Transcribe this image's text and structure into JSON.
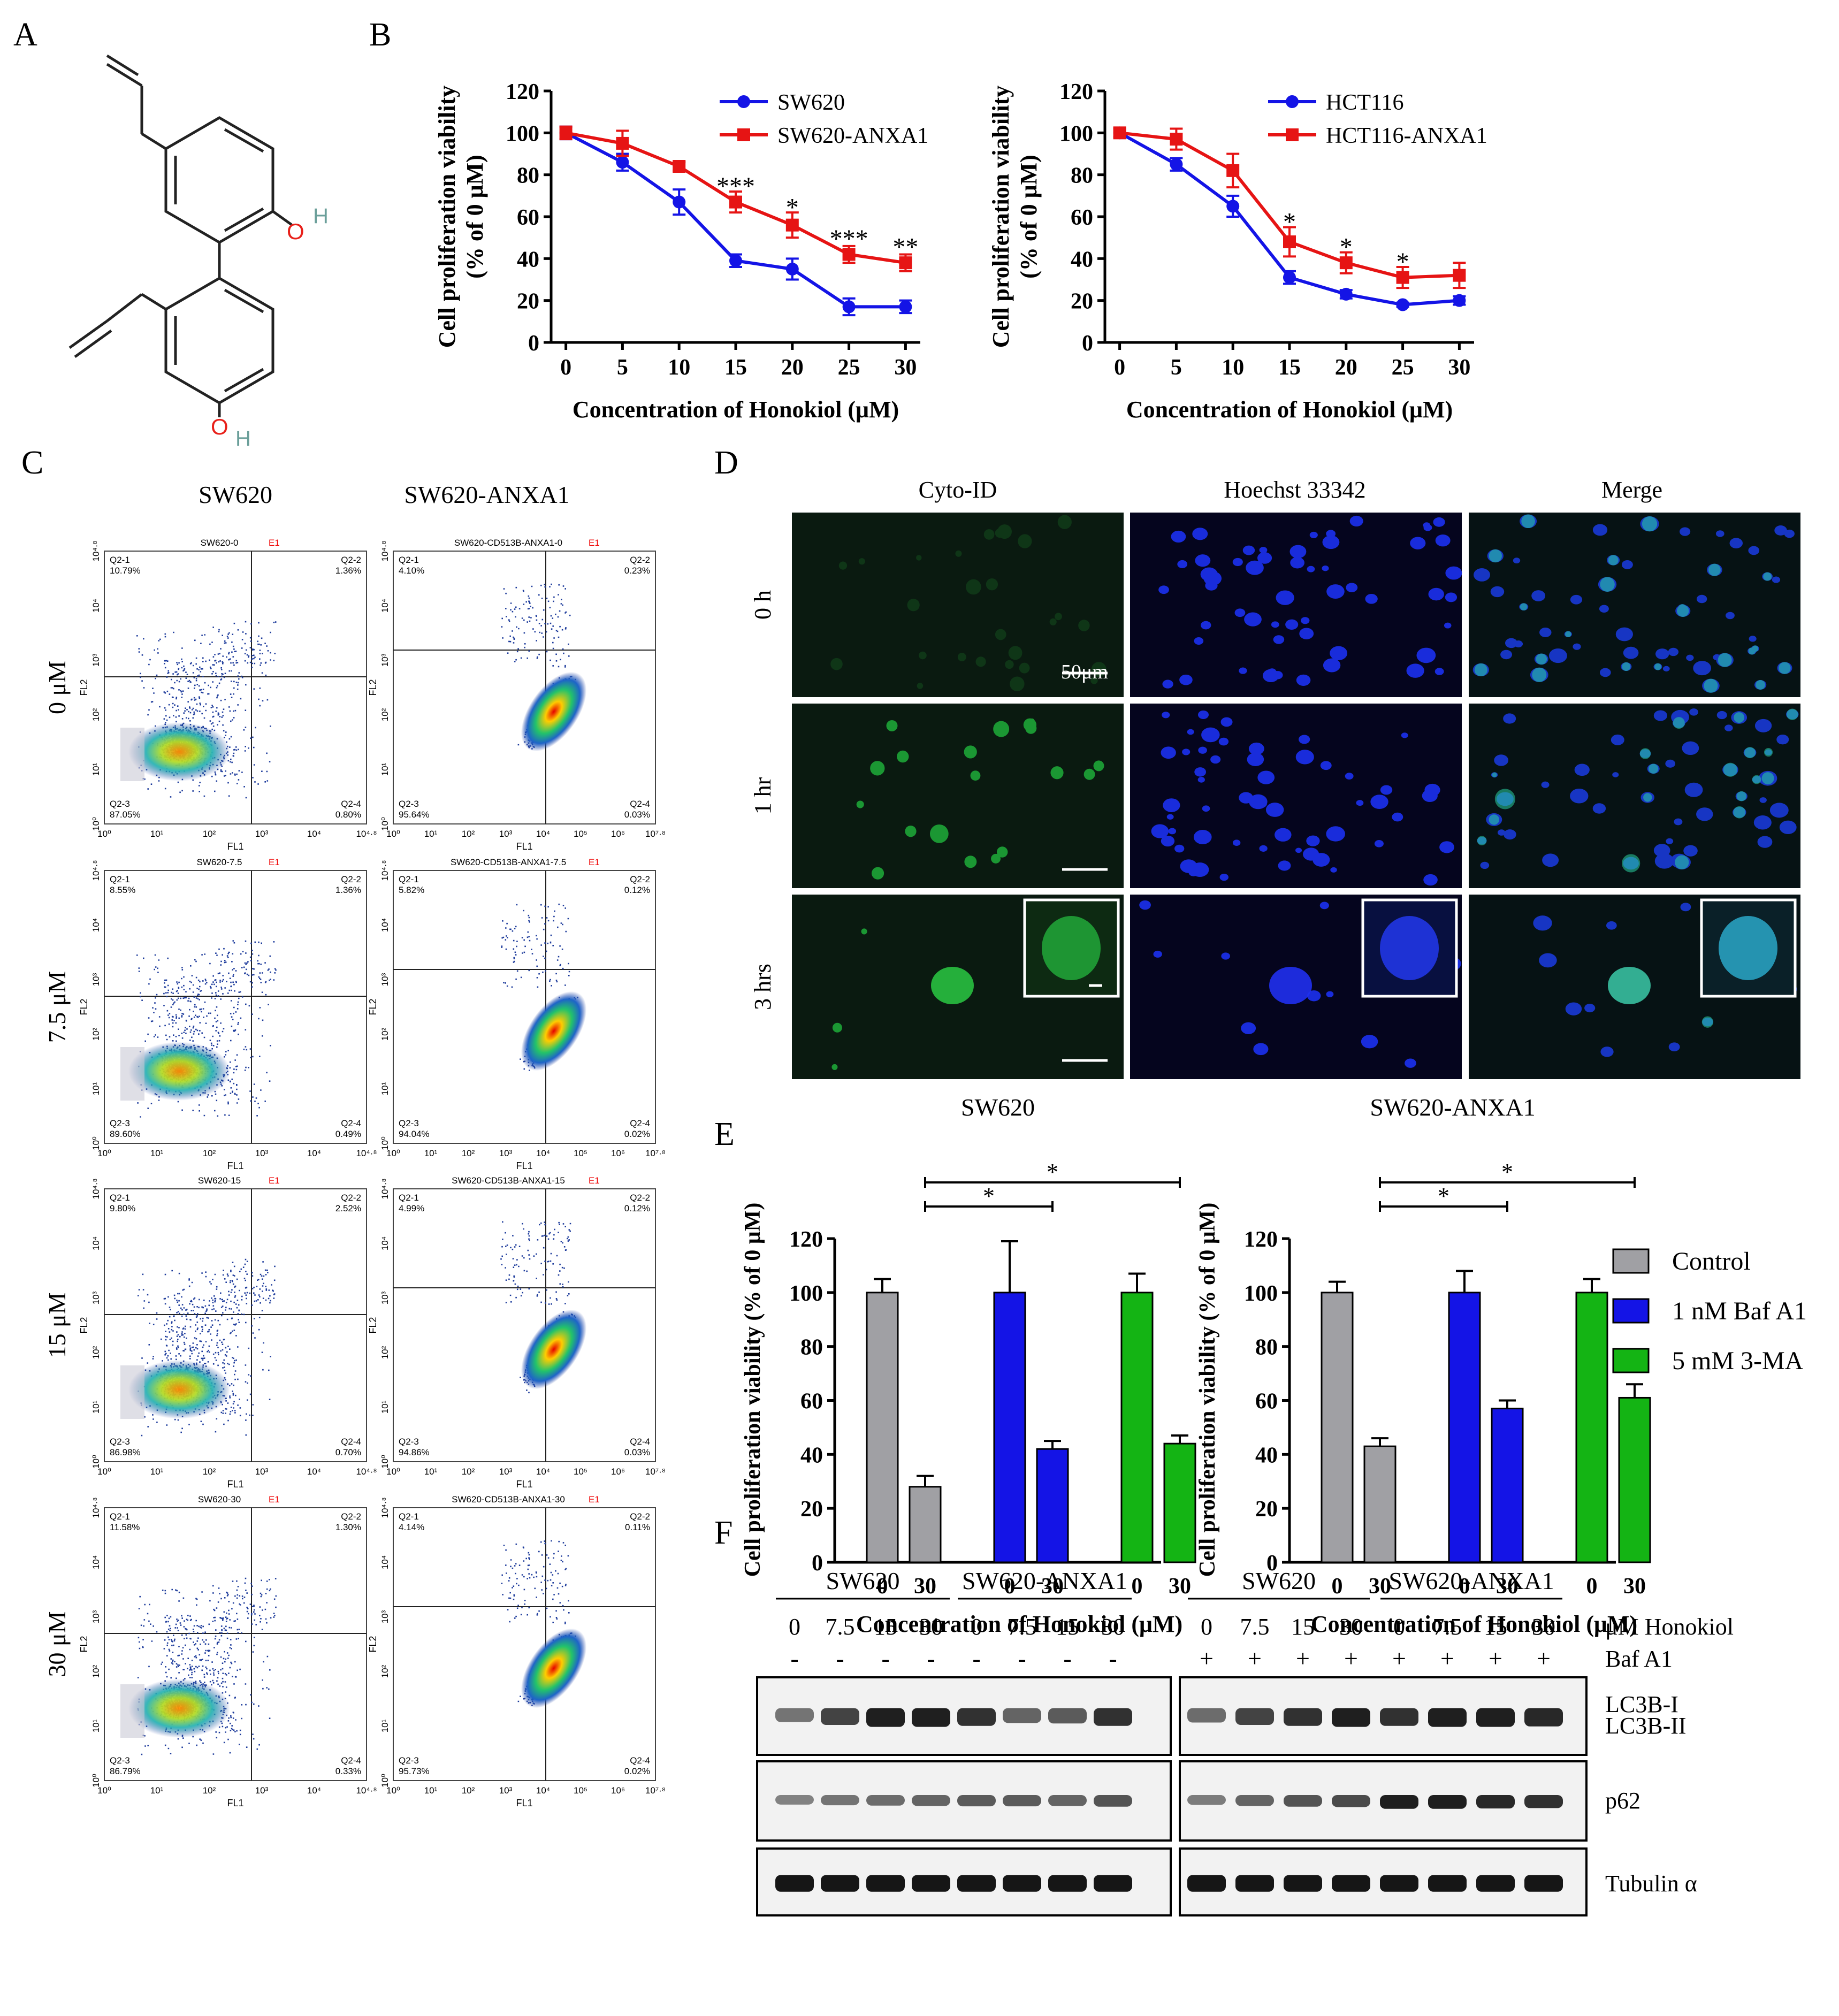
{
  "panels": {
    "A": "A",
    "B": "B",
    "C": "C",
    "D": "D",
    "E": "E",
    "F": "F"
  },
  "panel_a": {
    "atom_labels": {
      "o1": "O",
      "h1": "H",
      "o2": "O",
      "h2": "H"
    }
  },
  "chart_data": [
    {
      "id": "B-left",
      "type": "line",
      "xlabel": "Concentration of Honokiol (μM)",
      "ylabel_line1": "Cell proliferation viability",
      "ylabel_line2": "(% of 0 μM)",
      "x": [
        0,
        5,
        10,
        15,
        20,
        25,
        30
      ],
      "xticks": [
        "0",
        "5",
        "10",
        "15",
        "20",
        "25",
        "30"
      ],
      "yticks": [
        "0",
        "20",
        "40",
        "60",
        "80",
        "100",
        "120"
      ],
      "ylim": [
        0,
        120
      ],
      "series": [
        {
          "name": "SW620",
          "color": "#1414e6",
          "values": [
            100,
            86,
            67,
            39,
            35,
            17,
            17
          ],
          "errors": [
            3,
            4,
            6,
            3,
            5,
            4,
            3
          ]
        },
        {
          "name": "SW620-ANXA1",
          "color": "#e61414",
          "values": [
            100,
            95,
            84,
            67,
            56,
            42,
            38
          ],
          "errors": [
            3,
            6,
            2,
            5,
            6,
            4,
            4
          ]
        }
      ],
      "annotations": [
        {
          "x": 15,
          "text": "***",
          "y": 73
        },
        {
          "x": 20,
          "text": "*",
          "y": 63
        },
        {
          "x": 25,
          "text": "***",
          "y": 48
        },
        {
          "x": 30,
          "text": "**",
          "y": 44
        }
      ]
    },
    {
      "id": "B-right",
      "type": "line",
      "xlabel": "Concentration of Honokiol (μM)",
      "ylabel_line1": "Cell proliferation viability",
      "ylabel_line2": "(% of 0 μM)",
      "x": [
        0,
        5,
        10,
        15,
        20,
        25,
        30
      ],
      "xticks": [
        "0",
        "5",
        "10",
        "15",
        "20",
        "25",
        "30"
      ],
      "yticks": [
        "0",
        "20",
        "40",
        "60",
        "80",
        "100",
        "120"
      ],
      "ylim": [
        0,
        120
      ],
      "series": [
        {
          "name": "HCT116",
          "color": "#1414e6",
          "values": [
            100,
            85,
            65,
            31,
            23,
            18,
            20
          ],
          "errors": [
            2,
            3,
            5,
            3,
            2,
            1,
            2
          ]
        },
        {
          "name": "HCT116-ANXA1",
          "color": "#e61414",
          "values": [
            100,
            97,
            82,
            48,
            38,
            31,
            32
          ],
          "errors": [
            2,
            5,
            8,
            7,
            5,
            5,
            6
          ]
        }
      ],
      "annotations": [
        {
          "x": 15,
          "text": "*",
          "y": 56
        },
        {
          "x": 20,
          "text": "*",
          "y": 44
        },
        {
          "x": 25,
          "text": "*",
          "y": 37
        }
      ]
    },
    {
      "id": "E-left",
      "type": "bar",
      "title": "SW620",
      "xlabel": "Concentration of Honokiol (μM)",
      "ylabel": "Cell proliferation viability (% of 0 μM)",
      "categories": [
        "0",
        "30",
        "0",
        "30",
        "0",
        "30"
      ],
      "yticks": [
        "0",
        "20",
        "40",
        "60",
        "80",
        "100",
        "120"
      ],
      "ylim": [
        0,
        120
      ],
      "values": [
        100,
        28,
        100,
        42,
        100,
        44
      ],
      "errors": [
        5,
        4,
        19,
        3,
        7,
        3
      ],
      "colors": [
        "#a0a0a4",
        "#a0a0a4",
        "#1414e6",
        "#1414e6",
        "#14b414",
        "#14b414"
      ],
      "brackets": [
        {
          "from": 1,
          "to": 3,
          "text": "*",
          "level": 0
        },
        {
          "from": 1,
          "to": 5,
          "text": "*",
          "level": 1
        }
      ]
    },
    {
      "id": "E-right",
      "type": "bar",
      "title": "SW620-ANXA1",
      "xlabel": "Concentration of Honokiol (μM)",
      "ylabel": "Cell proliferation viability (% of 0 μM)",
      "categories": [
        "0",
        "30",
        "0",
        "30",
        "0",
        "30"
      ],
      "yticks": [
        "0",
        "20",
        "40",
        "60",
        "80",
        "100",
        "120"
      ],
      "ylim": [
        0,
        120
      ],
      "values": [
        100,
        43,
        100,
        57,
        100,
        61
      ],
      "errors": [
        4,
        3,
        8,
        3,
        5,
        5
      ],
      "colors": [
        "#a0a0a4",
        "#a0a0a4",
        "#1414e6",
        "#1414e6",
        "#14b414",
        "#14b414"
      ],
      "brackets": [
        {
          "from": 1,
          "to": 3,
          "text": "*",
          "level": 0
        },
        {
          "from": 1,
          "to": 5,
          "text": "*",
          "level": 1
        }
      ]
    }
  ],
  "legend_e": [
    {
      "label": "Control",
      "color": "#a0a0a4"
    },
    {
      "label": "1 nM Baf A1",
      "color": "#1414e6"
    },
    {
      "label": "5 mM 3-MA",
      "color": "#14b414"
    }
  ],
  "panel_c": {
    "col_headers": [
      "SW620",
      "SW620-ANXA1"
    ],
    "row_labels": [
      "0 μM",
      "7.5 μM",
      "15 μM",
      "30 μM"
    ],
    "x_axis_label": "FL1",
    "y_axis_label": "FL2",
    "plots": [
      {
        "title": "SW620-0",
        "gate": "E1",
        "q1": "10.79%",
        "q2": "1.36%",
        "q3": "87.05%",
        "q4": "0.80%"
      },
      {
        "title": "SW620-CD513B-ANXA1-0",
        "gate": "E1",
        "q1": "4.10%",
        "q2": "0.23%",
        "q3": "95.64%",
        "q4": "0.03%"
      },
      {
        "title": "SW620-7.5",
        "gate": "E1",
        "q1": "8.55%",
        "q2": "1.36%",
        "q3": "89.60%",
        "q4": "0.49%"
      },
      {
        "title": "SW620-CD513B-ANXA1-7.5",
        "gate": "E1",
        "q1": "5.82%",
        "q2": "0.12%",
        "q3": "94.04%",
        "q4": "0.02%"
      },
      {
        "title": "SW620-15",
        "gate": "E1",
        "q1": "9.80%",
        "q2": "2.52%",
        "q3": "86.98%",
        "q4": "0.70%"
      },
      {
        "title": "SW620-CD513B-ANXA1-15",
        "gate": "E1",
        "q1": "4.99%",
        "q2": "0.12%",
        "q3": "94.86%",
        "q4": "0.03%"
      },
      {
        "title": "SW620-30",
        "gate": "E1",
        "q1": "11.58%",
        "q2": "1.30%",
        "q3": "86.79%",
        "q4": "0.33%"
      },
      {
        "title": "SW620-CD513B-ANXA1-30",
        "gate": "E1",
        "q1": "4.14%",
        "q2": "0.11%",
        "q3": "95.73%",
        "q4": "0.02%"
      }
    ],
    "quadrant_names": {
      "q1": "Q2-1",
      "q2": "Q2-2",
      "q3": "Q2-3",
      "q4": "Q2-4"
    },
    "xticks_sw620": [
      "10⁰",
      "10¹",
      "10²",
      "10³",
      "10⁴",
      "10⁴·⁸"
    ],
    "xticks_anxa1": [
      "10⁰",
      "10¹",
      "10²",
      "10³",
      "10⁴",
      "10⁵",
      "10⁶",
      "10⁷·⁸"
    ],
    "yticks": [
      "10⁰",
      "10¹",
      "10²",
      "10³",
      "10⁴",
      "10⁴·⁸"
    ]
  },
  "panel_d": {
    "col_headers": [
      "Cyto-ID",
      "Hoechst 33342",
      "Merge"
    ],
    "row_labels": [
      "0 h",
      "1 hr",
      "3 hrs"
    ],
    "scale_label": "50μm"
  },
  "panel_f": {
    "group_labels": [
      "SW620",
      "SW620-ANXA1",
      "SW620",
      "SW620-ANXA1"
    ],
    "doses": [
      "0",
      "7.5",
      "15",
      "30",
      "0",
      "7.5",
      "15",
      "30",
      "0",
      "7.5",
      "15",
      "30",
      "0",
      "7.5",
      "15",
      "30"
    ],
    "baf": [
      "-",
      "-",
      "-",
      "-",
      "-",
      "-",
      "-",
      "-",
      "+",
      "+",
      "+",
      "+",
      "+",
      "+",
      "+",
      "+"
    ],
    "row_label_dose": "μM Honokiol",
    "row_label_baf": "Baf A1",
    "bands": [
      "LC3B-I",
      "LC3B-II",
      "p62",
      "Tubulin α"
    ],
    "intensity_lc3_minus": [
      0.45,
      0.75,
      0.95,
      0.95,
      0.85,
      0.55,
      0.6,
      0.85
    ],
    "intensity_lc3_plus": [
      0.5,
      0.75,
      0.85,
      0.95,
      0.85,
      0.95,
      0.95,
      0.9
    ],
    "intensity_p62_minus": [
      0.35,
      0.45,
      0.5,
      0.55,
      0.6,
      0.6,
      0.55,
      0.65
    ],
    "intensity_p62_plus": [
      0.4,
      0.55,
      0.65,
      0.7,
      0.95,
      0.95,
      0.9,
      0.85
    ]
  }
}
